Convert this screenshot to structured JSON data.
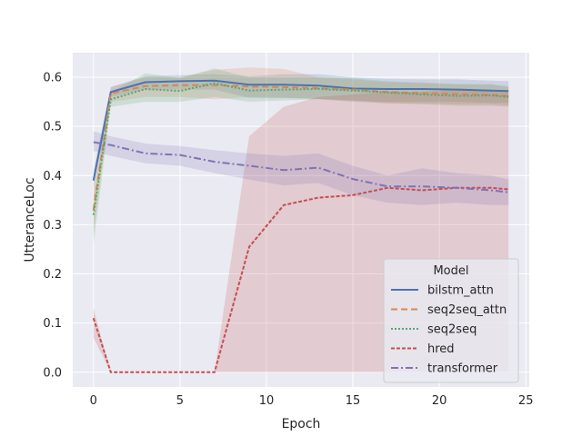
{
  "chart_data": {
    "type": "line",
    "title": "",
    "xlabel": "Epoch",
    "ylabel": "UtteranceLoc",
    "xlim": [
      -1.2,
      25.2
    ],
    "ylim": [
      -0.03,
      0.65
    ],
    "xticks": [
      0,
      5,
      10,
      15,
      20,
      25
    ],
    "yticks": [
      0.0,
      0.1,
      0.2,
      0.3,
      0.4,
      0.5,
      0.6
    ],
    "ytick_labels": [
      "0.0",
      "0.1",
      "0.2",
      "0.3",
      "0.4",
      "0.5",
      "0.6"
    ],
    "grid": true,
    "legend_title": "Model",
    "legend_position": "lower-right",
    "x": [
      0,
      1,
      3,
      5,
      7,
      9,
      11,
      13,
      15,
      17,
      19,
      21,
      23,
      24
    ],
    "series": [
      {
        "name": "bilstm_attn",
        "color": "#4c72b0",
        "dash": "",
        "values": [
          0.39,
          0.57,
          0.59,
          0.592,
          0.593,
          0.585,
          0.585,
          0.583,
          0.577,
          0.576,
          0.576,
          0.575,
          0.573,
          0.572
        ],
        "lower": [
          0.37,
          0.56,
          0.575,
          0.575,
          0.575,
          0.558,
          0.558,
          0.556,
          0.552,
          0.55,
          0.55,
          0.55,
          0.548,
          0.548
        ],
        "upper": [
          0.41,
          0.58,
          0.602,
          0.604,
          0.606,
          0.602,
          0.606,
          0.606,
          0.6,
          0.597,
          0.596,
          0.596,
          0.593,
          0.592
        ]
      },
      {
        "name": "seq2seq_attn",
        "color": "#dd8452",
        "dash": "7,4",
        "values": [
          0.33,
          0.567,
          0.582,
          0.584,
          0.584,
          0.581,
          0.58,
          0.578,
          0.575,
          0.57,
          0.568,
          0.566,
          0.564,
          0.562
        ],
        "lower": [
          0.28,
          0.55,
          0.56,
          0.56,
          0.555,
          0.56,
          0.558,
          0.556,
          0.553,
          0.546,
          0.546,
          0.545,
          0.545,
          0.542
        ],
        "upper": [
          0.37,
          0.58,
          0.6,
          0.6,
          0.615,
          0.62,
          0.617,
          0.6,
          0.596,
          0.59,
          0.59,
          0.586,
          0.585,
          0.582
        ]
      },
      {
        "name": "seq2seq",
        "color": "#55a868",
        "dash": "2,2",
        "values": [
          0.32,
          0.555,
          0.576,
          0.572,
          0.588,
          0.573,
          0.575,
          0.576,
          0.573,
          0.569,
          0.565,
          0.562,
          0.563,
          0.56
        ],
        "lower": [
          0.26,
          0.54,
          0.55,
          0.55,
          0.56,
          0.55,
          0.553,
          0.555,
          0.55,
          0.548,
          0.545,
          0.542,
          0.542,
          0.54
        ],
        "upper": [
          0.36,
          0.57,
          0.608,
          0.598,
          0.618,
          0.6,
          0.6,
          0.6,
          0.598,
          0.592,
          0.588,
          0.586,
          0.586,
          0.58
        ]
      },
      {
        "name": "hred",
        "color": "#c44e52",
        "dash": "4,2",
        "values": [
          0.11,
          0.0,
          0.0,
          0.0,
          0.0,
          0.255,
          0.34,
          0.355,
          0.36,
          0.375,
          0.37,
          0.375,
          0.375,
          0.372
        ],
        "lower": [
          0.07,
          0.0,
          0.0,
          0.0,
          0.0,
          0.0,
          0.0,
          0.0,
          0.0,
          0.0,
          0.0,
          0.0,
          0.0,
          0.0
        ],
        "upper": [
          0.13,
          0.0,
          0.0,
          0.0,
          0.0,
          0.48,
          0.54,
          0.56,
          0.565,
          0.57,
          0.57,
          0.575,
          0.575,
          0.57
        ]
      },
      {
        "name": "transformer",
        "color": "#8172b3",
        "dash": "8,3,2,3",
        "values": [
          0.468,
          0.462,
          0.445,
          0.442,
          0.428,
          0.42,
          0.411,
          0.416,
          0.393,
          0.378,
          0.378,
          0.375,
          0.37,
          0.366
        ],
        "lower": [
          0.45,
          0.44,
          0.425,
          0.42,
          0.405,
          0.392,
          0.38,
          0.385,
          0.36,
          0.345,
          0.34,
          0.345,
          0.34,
          0.34
        ],
        "upper": [
          0.49,
          0.48,
          0.465,
          0.46,
          0.452,
          0.445,
          0.44,
          0.445,
          0.42,
          0.4,
          0.415,
          0.405,
          0.4,
          0.392
        ]
      }
    ]
  }
}
